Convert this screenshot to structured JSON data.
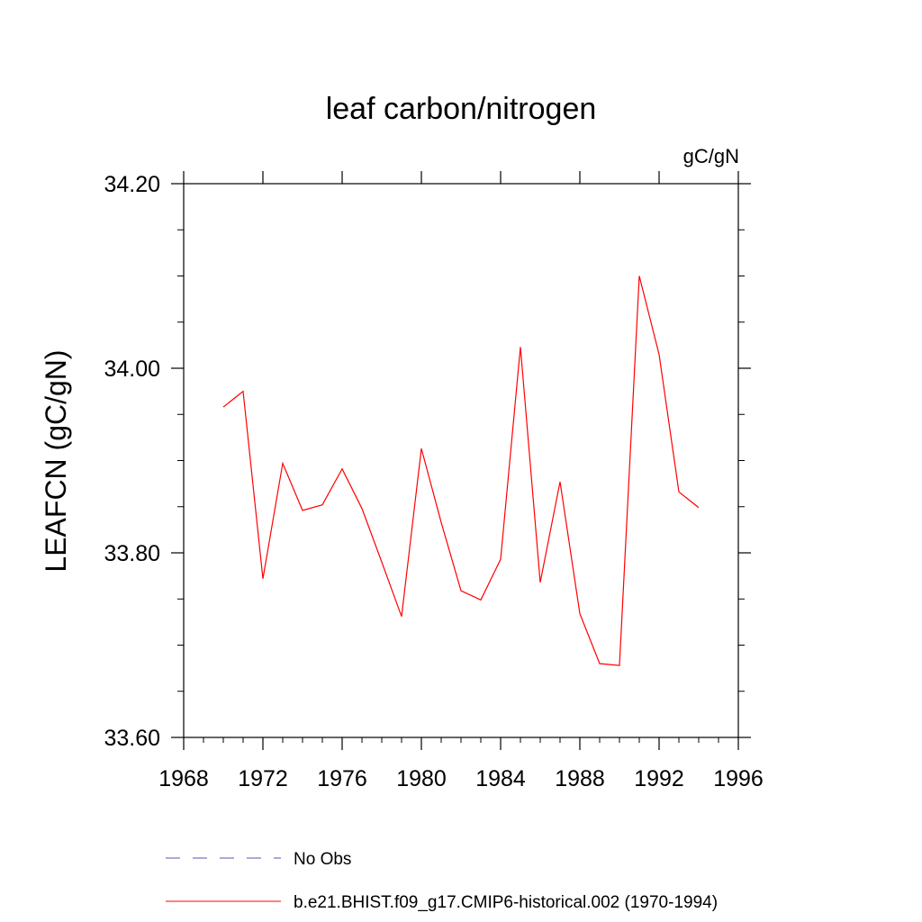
{
  "chart_data": {
    "type": "line",
    "title": "leaf carbon/nitrogen",
    "units": "gC/gN",
    "ylabel": "LEAFCN  (gC/gN)",
    "xlabel": "",
    "xlim": [
      1968,
      1996
    ],
    "ylim": [
      33.6,
      34.2
    ],
    "xticks": [
      1968,
      1972,
      1976,
      1980,
      1984,
      1988,
      1992,
      1996
    ],
    "xtick_labels": [
      "1968",
      "1972",
      "1976",
      "1980",
      "1984",
      "1988",
      "1992",
      "1996"
    ],
    "yticks": [
      33.6,
      33.8,
      34.0,
      34.2
    ],
    "ytick_labels": [
      "33.60",
      "33.80",
      "34.00",
      "34.20"
    ],
    "y_minor_step": 0.05,
    "grid": false,
    "legend_position": "bottom",
    "series": [
      {
        "name": "No Obs",
        "color": "#5555aa",
        "style": "dashed",
        "x": [],
        "y": []
      },
      {
        "name": "b.e21.BHIST.f09_g17.CMIP6-historical.002 (1970-1994)",
        "color": "#ff0000",
        "style": "solid",
        "x": [
          1970,
          1971,
          1972,
          1973,
          1974,
          1975,
          1976,
          1977,
          1978,
          1979,
          1980,
          1981,
          1982,
          1983,
          1984,
          1985,
          1986,
          1987,
          1988,
          1989,
          1990,
          1991,
          1992,
          1993,
          1994
        ],
        "y": [
          33.958,
          33.975,
          33.772,
          33.897,
          33.846,
          33.852,
          33.891,
          33.848,
          33.79,
          33.731,
          33.913,
          33.833,
          33.759,
          33.749,
          33.793,
          34.023,
          33.768,
          33.877,
          33.734,
          33.68,
          33.678,
          34.1,
          34.015,
          33.866,
          33.849
        ]
      }
    ]
  }
}
